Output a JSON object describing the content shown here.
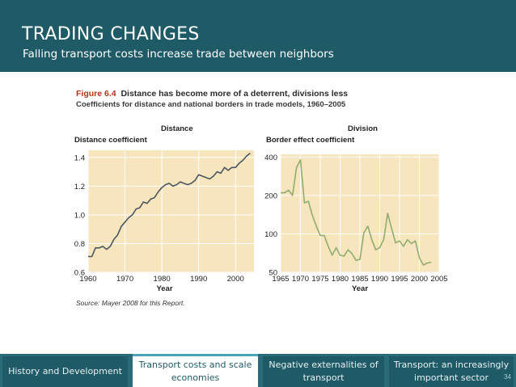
{
  "header": {
    "title": "TRADING CHANGES",
    "subtitle": "Falling transport costs increase trade between neighbors"
  },
  "figure": {
    "label": "Figure 6.4",
    "title": "Distance has become more of a deterrent, divisions less",
    "subtitle": "Coefficients for distance and national borders in trade models, 1960–2005",
    "source": "Source: Mayer 2008 for this Report.",
    "colors": {
      "plot_bg": "#f7e5bd",
      "distance_line": "#4b5660",
      "division_line": "#8fae6e",
      "grid": "#ffffff"
    }
  },
  "chart_data": [
    {
      "type": "line",
      "title": "Distance",
      "ylabel": "Distance coefficient",
      "xlabel": "Year",
      "xlim": [
        1960,
        2005
      ],
      "ylim": [
        0.6,
        1.45
      ],
      "xticks": [
        1960,
        1970,
        1980,
        1990,
        2000
      ],
      "xtick_labels": [
        "1960",
        "1970",
        "1980",
        "1990",
        "2000"
      ],
      "yticks": [
        0.6,
        0.8,
        1.0,
        1.2,
        1.4
      ],
      "ytick_labels": [
        "0.6",
        "0.8",
        "1.0",
        "1.2",
        "1.4"
      ],
      "grid": true,
      "series": [
        {
          "name": "Distance coefficient",
          "x": [
            1960,
            1961,
            1962,
            1963,
            1964,
            1965,
            1966,
            1967,
            1968,
            1969,
            1970,
            1971,
            1972,
            1973,
            1974,
            1975,
            1976,
            1977,
            1978,
            1979,
            1980,
            1981,
            1982,
            1983,
            1984,
            1985,
            1986,
            1987,
            1988,
            1989,
            1990,
            1991,
            1992,
            1993,
            1994,
            1995,
            1996,
            1997,
            1998,
            1999,
            2000,
            2001,
            2002,
            2003,
            2004
          ],
          "y": [
            0.71,
            0.71,
            0.77,
            0.77,
            0.78,
            0.76,
            0.78,
            0.83,
            0.86,
            0.92,
            0.95,
            0.98,
            1.0,
            1.04,
            1.05,
            1.09,
            1.08,
            1.11,
            1.12,
            1.16,
            1.19,
            1.21,
            1.22,
            1.2,
            1.21,
            1.23,
            1.22,
            1.21,
            1.22,
            1.24,
            1.28,
            1.27,
            1.26,
            1.25,
            1.27,
            1.3,
            1.29,
            1.33,
            1.31,
            1.33,
            1.33,
            1.36,
            1.38,
            1.41,
            1.43
          ]
        }
      ]
    },
    {
      "type": "line",
      "title": "Division",
      "ylabel": "Border effect coefficient",
      "xlabel": "Year",
      "y_scale": "log",
      "xlim": [
        1965,
        2005
      ],
      "ylim": [
        50,
        420
      ],
      "xticks": [
        1965,
        1970,
        1975,
        1980,
        1985,
        1990,
        1995,
        2000,
        2005
      ],
      "xtick_labels": [
        "1965",
        "1970",
        "1975",
        "1980",
        "1985",
        "1990",
        "1995",
        "2000",
        "2005"
      ],
      "yticks": [
        50,
        100,
        200,
        400
      ],
      "ytick_labels": [
        "50",
        "100",
        "200",
        "400"
      ],
      "grid": true,
      "series": [
        {
          "name": "Border effect coefficient",
          "x": [
            1965,
            1966,
            1967,
            1968,
            1969,
            1970,
            1971,
            1972,
            1973,
            1974,
            1975,
            1976,
            1977,
            1978,
            1979,
            1980,
            1981,
            1982,
            1983,
            1984,
            1985,
            1986,
            1987,
            1988,
            1989,
            1990,
            1991,
            1992,
            1993,
            1994,
            1995,
            1996,
            1997,
            1998,
            1999,
            2000,
            2001,
            2002,
            2003
          ],
          "y": [
            210,
            210,
            220,
            200,
            330,
            380,
            175,
            180,
            140,
            115,
            97,
            97,
            80,
            68,
            78,
            68,
            67,
            75,
            70,
            62,
            63,
            102,
            115,
            90,
            75,
            78,
            90,
            145,
            110,
            85,
            88,
            80,
            90,
            84,
            88,
            65,
            57,
            59,
            60
          ]
        }
      ]
    }
  ],
  "tabs": [
    {
      "label": "History and Development",
      "active": false
    },
    {
      "label": "Transport costs and scale economies",
      "active": true
    },
    {
      "label": "Negative externalities of transport",
      "active": false
    },
    {
      "label": "Transport: an increasingly important sector",
      "active": false
    }
  ],
  "page_number": "34"
}
